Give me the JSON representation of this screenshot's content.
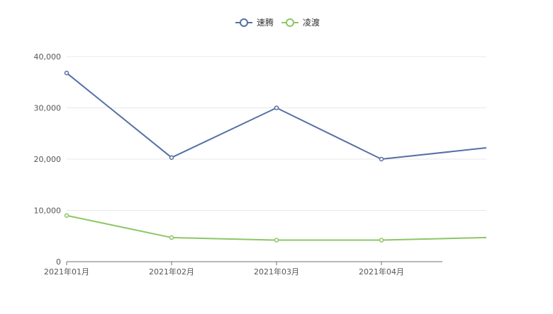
{
  "chart_data": {
    "type": "line",
    "title": "",
    "xlabel": "",
    "ylabel": "",
    "categories": [
      "2021年01月",
      "2021年02月",
      "2021年03月",
      "2021年04月",
      ""
    ],
    "series": [
      {
        "name": "速腾",
        "color": "#5470a4",
        "values": [
          36800,
          20300,
          30000,
          20000,
          22200
        ]
      },
      {
        "name": "凌渡",
        "color": "#8cc665",
        "values": [
          9000,
          4700,
          4200,
          4200,
          4700
        ]
      }
    ],
    "y_ticks": [
      0,
      10000,
      20000,
      30000,
      40000
    ],
    "y_tick_labels": [
      "0",
      "10,000",
      "20,000",
      "30,000",
      "40,000"
    ],
    "ylim": [
      0,
      40000
    ],
    "grid": true,
    "legend_position": "top-center"
  }
}
